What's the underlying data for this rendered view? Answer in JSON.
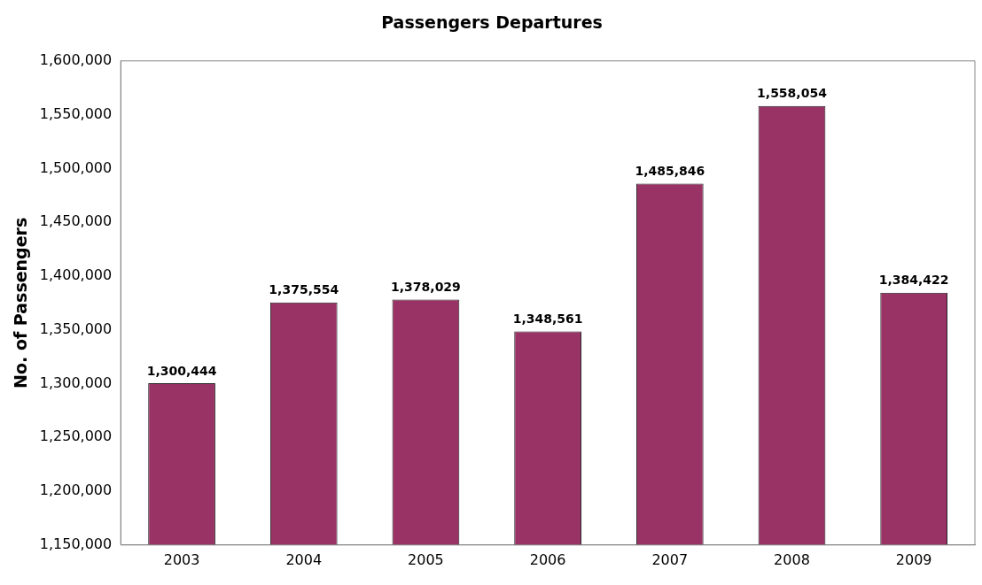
{
  "chart_data": {
    "type": "bar",
    "title": "Passengers Departures",
    "ylabel": "No. of Passengers",
    "categories": [
      "2003",
      "2004",
      "2005",
      "2006",
      "2007",
      "2008",
      "2009"
    ],
    "values": [
      1300444,
      1375554,
      1378029,
      1348561,
      1485846,
      1558054,
      1384422
    ],
    "color": "#993366",
    "ylim": [
      1150000,
      1600000
    ],
    "yticks": [
      {
        "value": 1150000,
        "label": "1,150,000"
      },
      {
        "value": 1200000,
        "label": "1,200,000"
      },
      {
        "value": 1250000,
        "label": "1,250,000"
      },
      {
        "value": 1300000,
        "label": "1,300,000"
      },
      {
        "value": 1350000,
        "label": "1,350,000"
      },
      {
        "value": 1400000,
        "label": "1,400,000"
      },
      {
        "value": 1450000,
        "label": "1,450,000"
      },
      {
        "value": 1500000,
        "label": "1,500,000"
      },
      {
        "value": 1550000,
        "label": "1,550,000"
      },
      {
        "value": 1600000,
        "label": "1,600,000"
      }
    ],
    "value_labels": [
      "1,300,444",
      "1,375,554",
      "1,378,029",
      "1,348,561",
      "1,485,846",
      "1,558,054",
      "1,384,422"
    ],
    "grid": false
  }
}
